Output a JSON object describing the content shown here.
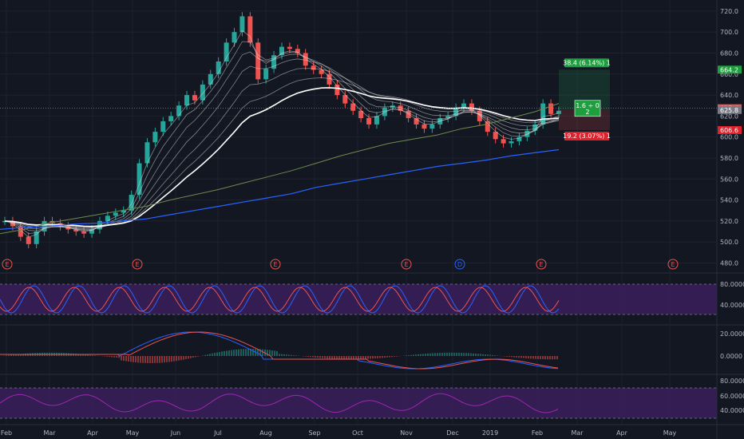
{
  "chart_data": {
    "type": "candlestick",
    "price_axis": {
      "ticks": [
        "720.0",
        "700.0",
        "680.0",
        "660.0",
        "640.0",
        "620.0",
        "600.0",
        "580.0",
        "560.0",
        "540.0",
        "520.0",
        "500.0",
        "480.0"
      ],
      "range": [
        472,
        726
      ]
    },
    "time_axis": {
      "labels": [
        "Feb",
        "Mar",
        "Apr",
        "May",
        "Jun",
        "Jul",
        "Aug",
        "Sep",
        "Oct",
        "Nov",
        "Dec",
        "2019",
        "Feb",
        "Mar",
        "Apr",
        "May"
      ]
    },
    "closes_approx": [
      520,
      515,
      505,
      498,
      510,
      520,
      518,
      515,
      512,
      510,
      508,
      512,
      520,
      525,
      528,
      530,
      545,
      575,
      595,
      605,
      615,
      620,
      630,
      640,
      635,
      650,
      660,
      672,
      690,
      700,
      715,
      690,
      655,
      665,
      678,
      686,
      684,
      680,
      668,
      664,
      660,
      650,
      640,
      632,
      625,
      618,
      612,
      620,
      628,
      630,
      625,
      618,
      612,
      608,
      612,
      618,
      620,
      628,
      632,
      625,
      615,
      605,
      598,
      594,
      596,
      600,
      606,
      612,
      632,
      622,
      625
    ],
    "moving_averages": {
      "ma200_approx": [
        508,
        512,
        518,
        522,
        526,
        530,
        534,
        540,
        545,
        550,
        556,
        562,
        568,
        575,
        582,
        588,
        594,
        598,
        602,
        608,
        612,
        618,
        624,
        632
      ],
      "ma_long_blue_approx": [
        512,
        514,
        515,
        517,
        518,
        520,
        522,
        526,
        530,
        534,
        538,
        542,
        546,
        552,
        556,
        560,
        564,
        568,
        572,
        575,
        578,
        582,
        585,
        588
      ]
    },
    "position_tool": {
      "target_label": "38.4 (6.14%) 1",
      "stop_label": "19.2 (3.07%) 1",
      "ratio_label_1": "1.6 ÷ 0",
      "ratio_label_2": "2",
      "target_price": 664.2,
      "entry_price": 625.8,
      "stop_price": 606.6
    },
    "price_labels": [
      {
        "text": "664.2",
        "color": "#1e9e3e"
      },
      {
        "text": "627.4",
        "color": "#ef5350"
      },
      {
        "text": "625.8",
        "color": "#787b86"
      },
      {
        "text": "606.6",
        "color": "#e0202a"
      }
    ],
    "event_markers": [
      "E",
      "E",
      "E",
      "E",
      "D",
      "E",
      "E"
    ],
    "stochastic": {
      "ticks": [
        "80.0000",
        "40.0000"
      ],
      "band": [
        20,
        80
      ]
    },
    "macd": {
      "ticks": [
        "20.0000",
        "0.0000"
      ]
    },
    "rsi": {
      "ticks": [
        "80.0000",
        "60.0000",
        "40.0000"
      ],
      "band": [
        30,
        70
      ]
    },
    "colors": {
      "up": "#26a69a",
      "down": "#ef5350",
      "ma200": "#6e8a4c",
      "ma_blue": "#2962ff",
      "band": "#3b1f5c"
    }
  }
}
